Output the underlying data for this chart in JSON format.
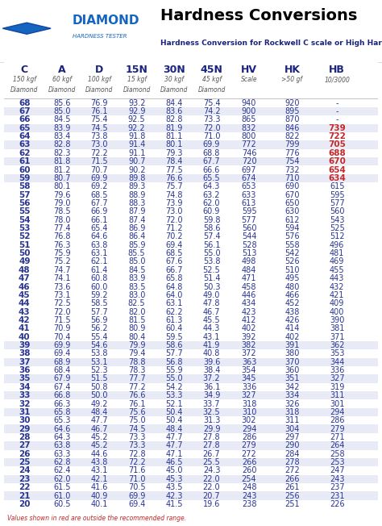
{
  "title": "Hardness Conversions",
  "subtitle": "Hardness Conversion for Rockwell C scale or High Hardness Range",
  "col_headers": [
    "C",
    "A",
    "D",
    "15N",
    "30N",
    "45N",
    "HV",
    "HK",
    "HB"
  ],
  "col_sub1": [
    "150 kgf",
    "60 kgf",
    "100 kgf",
    "15 kgf",
    "30 kgf",
    "45 kgf",
    "Scale",
    ">50 gf",
    "10/3000"
  ],
  "col_sub2": [
    "Diamond",
    "Diamond",
    "Diamond",
    "Diamond",
    "Diamond",
    "Diamond",
    "",
    "",
    ""
  ],
  "rows": [
    [
      68,
      85.6,
      76.9,
      93.2,
      84.4,
      75.4,
      940,
      920,
      "-"
    ],
    [
      67,
      85.0,
      76.1,
      92.9,
      83.6,
      74.2,
      900,
      895,
      "-"
    ],
    [
      66,
      84.5,
      75.4,
      92.5,
      82.8,
      73.3,
      865,
      870,
      "-"
    ],
    [
      65,
      83.9,
      74.5,
      92.2,
      81.9,
      72.0,
      832,
      846,
      "739"
    ],
    [
      64,
      83.4,
      73.8,
      91.8,
      81.1,
      71.0,
      800,
      822,
      "722"
    ],
    [
      63,
      82.8,
      73.0,
      91.4,
      80.1,
      69.9,
      772,
      799,
      "705"
    ],
    [
      62,
      82.3,
      72.2,
      91.1,
      79.3,
      68.8,
      746,
      776,
      "688"
    ],
    [
      61,
      81.8,
      71.5,
      90.7,
      78.4,
      67.7,
      720,
      754,
      "670"
    ],
    [
      60,
      81.2,
      70.7,
      90.2,
      77.5,
      66.6,
      697,
      732,
      "654"
    ],
    [
      59,
      80.7,
      69.9,
      89.8,
      76.6,
      65.5,
      674,
      710,
      "634"
    ],
    [
      58,
      80.1,
      69.2,
      89.3,
      75.7,
      64.3,
      653,
      690,
      615
    ],
    [
      57,
      79.6,
      68.5,
      88.9,
      74.8,
      63.2,
      633,
      670,
      595
    ],
    [
      56,
      79.0,
      67.7,
      88.3,
      73.9,
      62.0,
      613,
      650,
      577
    ],
    [
      55,
      78.5,
      66.9,
      87.9,
      73.0,
      60.9,
      595,
      630,
      560
    ],
    [
      54,
      78.0,
      66.1,
      87.4,
      72.0,
      59.8,
      577,
      612,
      543
    ],
    [
      53,
      77.4,
      65.4,
      86.9,
      71.2,
      58.6,
      560,
      594,
      525
    ],
    [
      52,
      76.8,
      64.6,
      86.4,
      70.2,
      57.4,
      544,
      576,
      512
    ],
    [
      51,
      76.3,
      63.8,
      85.9,
      69.4,
      56.1,
      528,
      558,
      496
    ],
    [
      50,
      75.9,
      63.1,
      85.5,
      68.5,
      55.0,
      513,
      542,
      481
    ],
    [
      49,
      75.2,
      62.1,
      85.0,
      67.6,
      53.8,
      498,
      526,
      469
    ],
    [
      48,
      74.7,
      61.4,
      84.5,
      66.7,
      52.5,
      484,
      510,
      455
    ],
    [
      47,
      74.1,
      60.8,
      83.9,
      65.8,
      51.4,
      471,
      495,
      443
    ],
    [
      46,
      73.6,
      60.0,
      83.5,
      64.8,
      50.3,
      458,
      480,
      432
    ],
    [
      45,
      73.1,
      59.2,
      83.0,
      64.0,
      49.0,
      446,
      466,
      421
    ],
    [
      44,
      72.5,
      58.5,
      82.5,
      63.1,
      47.8,
      434,
      452,
      409
    ],
    [
      43,
      72.0,
      57.7,
      82.0,
      62.2,
      46.7,
      423,
      438,
      400
    ],
    [
      42,
      71.5,
      56.9,
      81.5,
      61.3,
      45.5,
      412,
      426,
      390
    ],
    [
      41,
      70.9,
      56.2,
      80.9,
      60.4,
      44.3,
      402,
      414,
      381
    ],
    [
      40,
      70.4,
      55.4,
      80.4,
      59.5,
      43.1,
      392,
      402,
      371
    ],
    [
      39,
      69.9,
      54.6,
      79.9,
      58.6,
      41.9,
      382,
      391,
      362
    ],
    [
      38,
      69.4,
      53.8,
      79.4,
      57.7,
      40.8,
      372,
      380,
      353
    ],
    [
      37,
      68.9,
      53.1,
      78.8,
      56.8,
      39.6,
      363,
      370,
      344
    ],
    [
      36,
      68.4,
      52.3,
      78.3,
      55.9,
      38.4,
      354,
      360,
      336
    ],
    [
      35,
      67.9,
      51.5,
      77.7,
      55.0,
      37.2,
      345,
      351,
      327
    ],
    [
      34,
      67.4,
      50.8,
      77.2,
      54.2,
      36.1,
      336,
      342,
      319
    ],
    [
      33,
      66.8,
      50.0,
      76.6,
      53.3,
      34.9,
      327,
      334,
      311
    ],
    [
      32,
      66.3,
      49.2,
      76.1,
      52.1,
      33.7,
      318,
      326,
      301
    ],
    [
      31,
      65.8,
      48.4,
      75.6,
      50.4,
      32.5,
      310,
      318,
      294
    ],
    [
      30,
      65.3,
      47.7,
      75.0,
      50.4,
      31.3,
      302,
      311,
      286
    ],
    [
      29,
      64.6,
      46.7,
      74.5,
      48.4,
      29.9,
      294,
      304,
      279
    ],
    [
      28,
      64.3,
      45.2,
      73.3,
      47.7,
      27.8,
      286,
      297,
      271
    ],
    [
      27,
      63.8,
      45.2,
      73.3,
      47.7,
      27.8,
      279,
      290,
      264
    ],
    [
      26,
      63.3,
      44.6,
      72.8,
      47.1,
      26.7,
      272,
      284,
      258
    ],
    [
      25,
      62.8,
      43.8,
      72.2,
      46.5,
      25.5,
      266,
      278,
      253
    ],
    [
      24,
      62.4,
      43.1,
      71.6,
      45.0,
      24.3,
      260,
      272,
      247
    ],
    [
      23,
      62.0,
      42.1,
      71.0,
      45.3,
      22.0,
      254,
      266,
      243
    ],
    [
      22,
      61.5,
      41.6,
      70.5,
      43.5,
      22.0,
      248,
      261,
      237
    ],
    [
      21,
      61.0,
      40.9,
      69.9,
      42.3,
      20.7,
      243,
      256,
      231
    ],
    [
      20,
      60.5,
      40.1,
      69.4,
      41.5,
      19.6,
      238,
      251,
      226
    ]
  ],
  "red_rows": [
    67,
    65,
    63,
    61,
    59,
    39,
    37,
    35,
    33,
    31,
    29,
    27,
    25,
    23,
    21
  ],
  "red_hb_rows": [
    65,
    64,
    63,
    62,
    61,
    60,
    59
  ],
  "bg_color_light": "#e8eaf6",
  "bg_color_white": "#ffffff",
  "header_color": "#1a237e",
  "text_color_blue": "#283593",
  "text_color_red": "#c62828",
  "note": "Values shown in red are outside the recommended range."
}
